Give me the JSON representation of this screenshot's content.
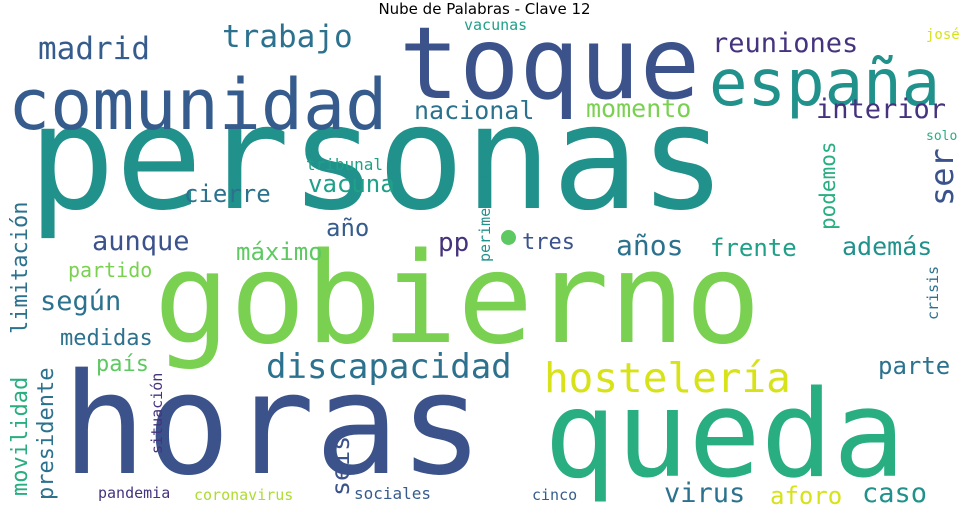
{
  "title": "Nube de Palabras - Clave 12",
  "colors": {
    "purple": "#46337e",
    "indigo": "#3b528b",
    "blue": "#365c8d",
    "teal_dark": "#2c728e",
    "teal": "#21918c",
    "teal_green": "#1fa088",
    "green": "#28ae80",
    "green_light": "#5ec962",
    "lime": "#7ad151",
    "lime_light": "#addc30",
    "yellow": "#d8e219",
    "yellow_bright": "#fde725"
  },
  "words": [
    {
      "text": "personas",
      "color": "#21918c"
    },
    {
      "text": "gobierno",
      "color": "#7ad151"
    },
    {
      "text": "horas",
      "color": "#3b528b"
    },
    {
      "text": "queda",
      "color": "#28ae80"
    },
    {
      "text": "toque",
      "color": "#3b528b"
    },
    {
      "text": "comunidad",
      "color": "#365c8d"
    },
    {
      "text": "españa",
      "color": "#21918c"
    },
    {
      "text": "hostelería",
      "color": "#d8e219"
    },
    {
      "text": "discapacidad",
      "color": "#2c728e"
    },
    {
      "text": "madrid",
      "color": "#365c8d"
    },
    {
      "text": "trabajo",
      "color": "#2c728e"
    },
    {
      "text": "reuniones",
      "color": "#46337e"
    },
    {
      "text": "nacional",
      "color": "#2c728e"
    },
    {
      "text": "momento",
      "color": "#7ad151"
    },
    {
      "text": "interior",
      "color": "#46337e"
    },
    {
      "text": "ser",
      "color": "#3b528b"
    },
    {
      "text": "vacuna",
      "color": "#1fa088"
    },
    {
      "text": "cierre",
      "color": "#2c728e"
    },
    {
      "text": "año",
      "color": "#365c8d"
    },
    {
      "text": "aunque",
      "color": "#3b528b"
    },
    {
      "text": "máximo",
      "color": "#5ec962"
    },
    {
      "text": "pp",
      "color": "#46337e"
    },
    {
      "text": "tres",
      "color": "#3b528b"
    },
    {
      "text": "años",
      "color": "#2c728e"
    },
    {
      "text": "frente",
      "color": "#1fa088"
    },
    {
      "text": "además",
      "color": "#21918c"
    },
    {
      "text": "podemos",
      "color": "#28ae80"
    },
    {
      "text": "limitación",
      "color": "#2c728e"
    },
    {
      "text": "movilidad",
      "color": "#28ae80"
    },
    {
      "text": "presidente",
      "color": "#2c728e"
    },
    {
      "text": "según",
      "color": "#2c728e"
    },
    {
      "text": "partido",
      "color": "#7ad151"
    },
    {
      "text": "medidas",
      "color": "#2c728e"
    },
    {
      "text": "país",
      "color": "#5ec962"
    },
    {
      "text": "seis",
      "color": "#3b528b"
    },
    {
      "text": "parte",
      "color": "#2c728e"
    },
    {
      "text": "virus",
      "color": "#2c728e"
    },
    {
      "text": "aforo",
      "color": "#d8e219"
    },
    {
      "text": "caso",
      "color": "#21918c"
    },
    {
      "text": "tribunal",
      "color": "#1fa088"
    },
    {
      "text": "perimetral",
      "color": "#21918c"
    },
    {
      "text": "vacunas",
      "color": "#1fa088"
    },
    {
      "text": "josé",
      "color": "#d8e219"
    },
    {
      "text": "solo",
      "color": "#28ae80"
    },
    {
      "text": "crisis",
      "color": "#2c728e"
    },
    {
      "text": "situación",
      "color": "#46337e"
    },
    {
      "text": "pandemia",
      "color": "#46337e"
    },
    {
      "text": "coronavirus",
      "color": "#addc30"
    },
    {
      "text": "sociales",
      "color": "#365c8d"
    },
    {
      "text": "cinco",
      "color": "#365c8d"
    }
  ]
}
